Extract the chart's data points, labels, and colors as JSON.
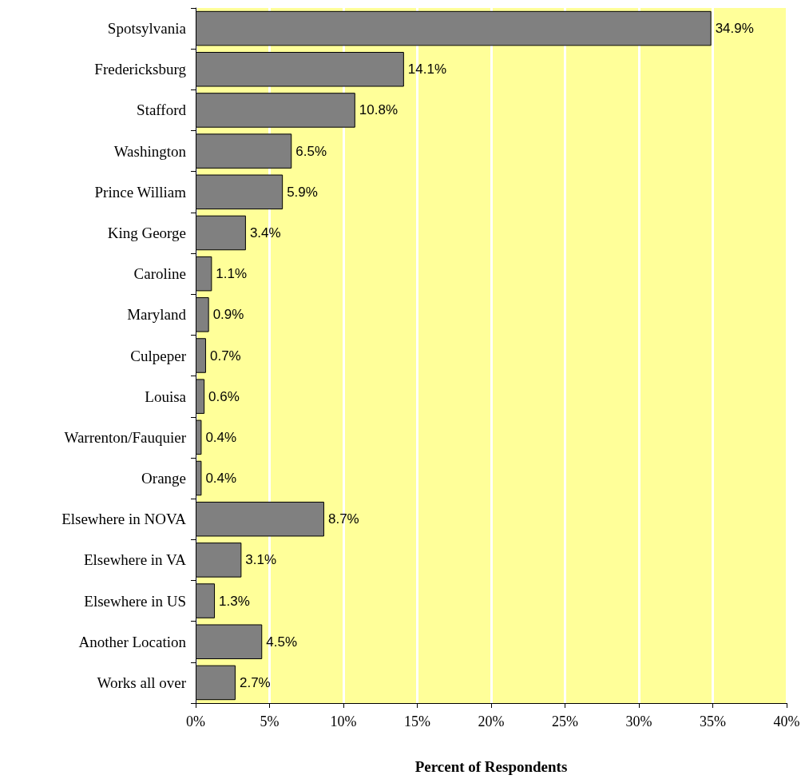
{
  "chart_data": {
    "type": "bar",
    "orientation": "horizontal",
    "xlabel": "Percent of Respondents",
    "categories": [
      "Spotsylvania",
      "Fredericksburg",
      "Stafford",
      "Washington",
      "Prince William",
      "King George",
      "Caroline",
      "Maryland",
      "Culpeper",
      "Louisa",
      "Warrenton/Fauquier",
      "Orange",
      "Elsewhere in NOVA",
      "Elsewhere in VA",
      "Elsewhere in US",
      "Another Location",
      "Works all over"
    ],
    "values": [
      34.9,
      14.1,
      10.8,
      6.5,
      5.9,
      3.4,
      1.1,
      0.9,
      0.7,
      0.6,
      0.4,
      0.4,
      8.7,
      3.1,
      1.3,
      4.5,
      2.7
    ],
    "value_labels": [
      "34.9%",
      "14.1%",
      "10.8%",
      "6.5%",
      "5.9%",
      "3.4%",
      "1.1%",
      "0.9%",
      "0.7%",
      "0.6%",
      "0.4%",
      "0.4%",
      "8.7%",
      "3.1%",
      "1.3%",
      "4.5%",
      "2.7%"
    ],
    "color": "#808080",
    "xlim": [
      0,
      40
    ],
    "xticks": [
      {
        "value": 0,
        "label": "0%"
      },
      {
        "value": 5,
        "label": "5%"
      },
      {
        "value": 10,
        "label": "10%"
      },
      {
        "value": 15,
        "label": "15%"
      },
      {
        "value": 20,
        "label": "20%"
      },
      {
        "value": 25,
        "label": "25%"
      },
      {
        "value": 30,
        "label": "30%"
      },
      {
        "value": 35,
        "label": "35%"
      },
      {
        "value": 40,
        "label": "40%"
      }
    ],
    "grid": "x"
  }
}
